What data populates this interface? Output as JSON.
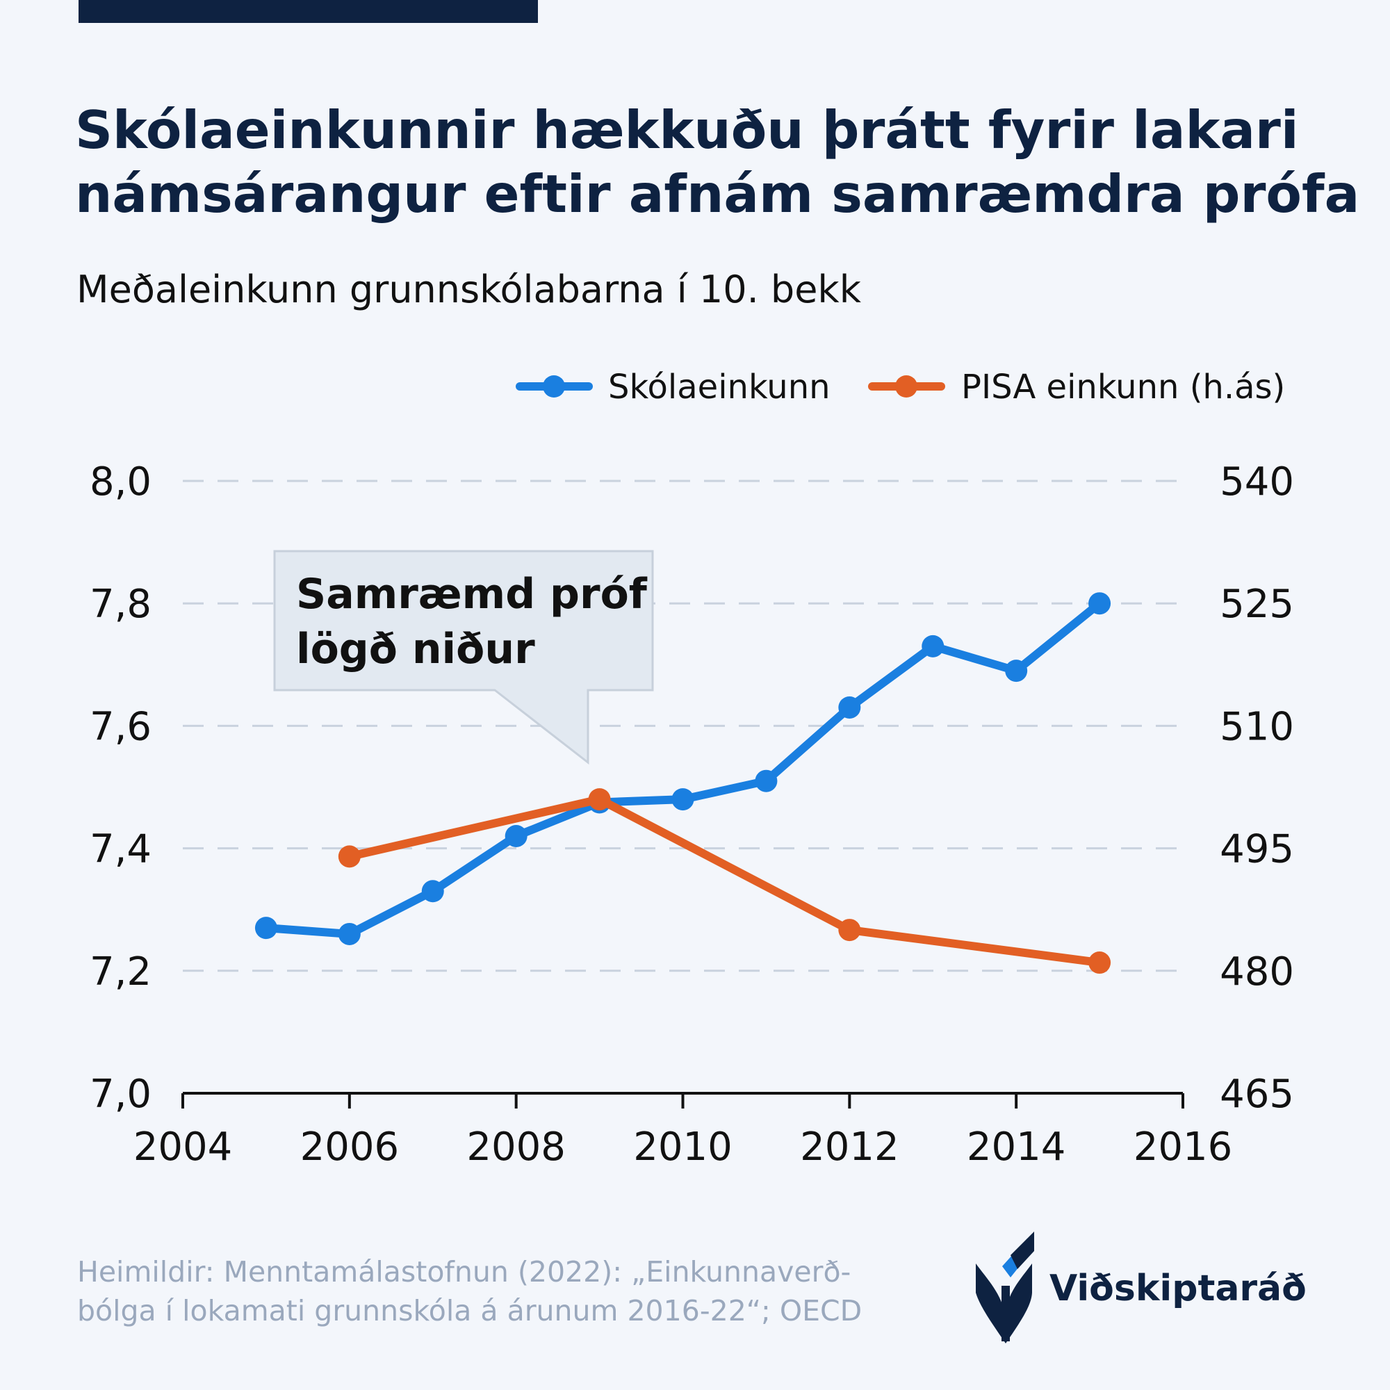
{
  "header": {
    "title_line1": "Skólaeinkunnir hækkuðu þrátt fyrir lakari",
    "title_line2": "námsárangur eftir afnám samræmdra prófa",
    "subtitle": "Meðaleinkunn grunnskólabarna í 10. bekk",
    "accent_color": "#0e2241"
  },
  "legend": [
    {
      "label": "Skólaeinkunn",
      "color": "#1a7fe0"
    },
    {
      "label": "PISA einkunn (h.ás)",
      "color": "#e25f24"
    }
  ],
  "callout": {
    "line1": "Samræmd próf",
    "line2": "lögð niður"
  },
  "chart_data": {
    "type": "line",
    "x_ticks": [
      "2004",
      "2006",
      "2008",
      "2010",
      "2012",
      "2014",
      "2016"
    ],
    "xlim": [
      2004,
      2016
    ],
    "y_left_ticks": [
      "7,0",
      "7,2",
      "7,4",
      "7,6",
      "7,8",
      "8,0"
    ],
    "ylim_left": [
      7.0,
      8.0
    ],
    "y_right_ticks": [
      "465",
      "480",
      "495",
      "510",
      "525",
      "540"
    ],
    "ylim_right": [
      465,
      540
    ],
    "grid": true,
    "legend_position": "top-right",
    "series": [
      {
        "name": "Skólaeinkunn",
        "axis": "left",
        "color": "#1a7fe0",
        "x": [
          2005,
          2006,
          2007,
          2008,
          2009,
          2010,
          2011,
          2012,
          2013,
          2014,
          2015
        ],
        "y": [
          7.27,
          7.26,
          7.33,
          7.42,
          7.475,
          7.48,
          7.51,
          7.63,
          7.73,
          7.69,
          7.8
        ]
      },
      {
        "name": "PISA einkunn (h.ás)",
        "axis": "right",
        "color": "#e25f24",
        "x": [
          2006,
          2009,
          2012,
          2015
        ],
        "y": [
          494,
          501,
          485,
          481
        ]
      }
    ]
  },
  "footer": {
    "source_line1": "Heimildir: Menntamálastofnun (2022): „Einkunnaverð-",
    "source_line2": "bólga í lokamati grunnskóla á árunum 2016-22“; OECD",
    "brand": "Viðskiptaráð",
    "logo_icon": "vidskiptarad-leaf-logo",
    "logo_colors": [
      "#0e2241",
      "#1a7fe0"
    ]
  }
}
